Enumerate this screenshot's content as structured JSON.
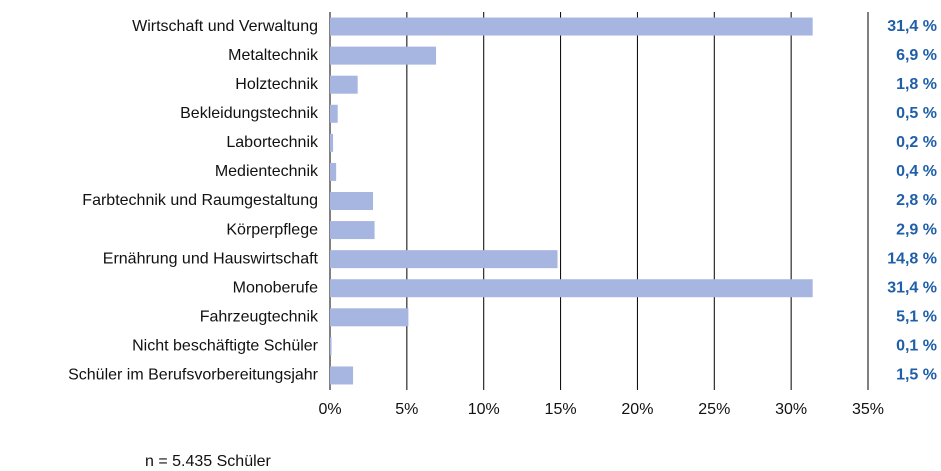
{
  "chart_data": {
    "type": "barh",
    "categories": [
      "Wirtschaft und Verwaltung",
      "Metaltechnik",
      "Holztechnik",
      "Bekleidungstechnik",
      "Labortechnik",
      "Medientechnik",
      "Farbtechnik und Raumgestaltung",
      "Körperpflege",
      "Ernährung und Hauswirtschaft",
      "Monoberufe",
      "Fahrzeugtechnik",
      "Nicht beschäftigte Schüler",
      "Schüler im Berufsvorbereitungsjahr"
    ],
    "values": [
      31.4,
      6.9,
      1.8,
      0.5,
      0.2,
      0.4,
      2.8,
      2.9,
      14.8,
      31.4,
      5.1,
      0.1,
      1.5
    ],
    "value_labels": [
      "31,4 %",
      "6,9 %",
      "1,8 %",
      "0,5 %",
      "0,2 %",
      "0,4 %",
      "2,8 %",
      "2,9 %",
      "14,8 %",
      "31,4 %",
      "5,1 %",
      "0,1 %",
      "1,5 %"
    ],
    "color": "#a7b5e1",
    "value_label_color": "#1f5fa8",
    "xlim": [
      0,
      35
    ],
    "xticks": [
      {
        "value": 0,
        "label": "0%"
      },
      {
        "value": 5,
        "label": "5%"
      },
      {
        "value": 10,
        "label": "10%"
      },
      {
        "value": 15,
        "label": "15%"
      },
      {
        "value": 20,
        "label": "20%"
      },
      {
        "value": 25,
        "label": "25%"
      },
      {
        "value": 30,
        "label": "30%"
      },
      {
        "value": 35,
        "label": "35%"
      }
    ],
    "grid": true,
    "note": "n = 5.435 Schüler"
  }
}
